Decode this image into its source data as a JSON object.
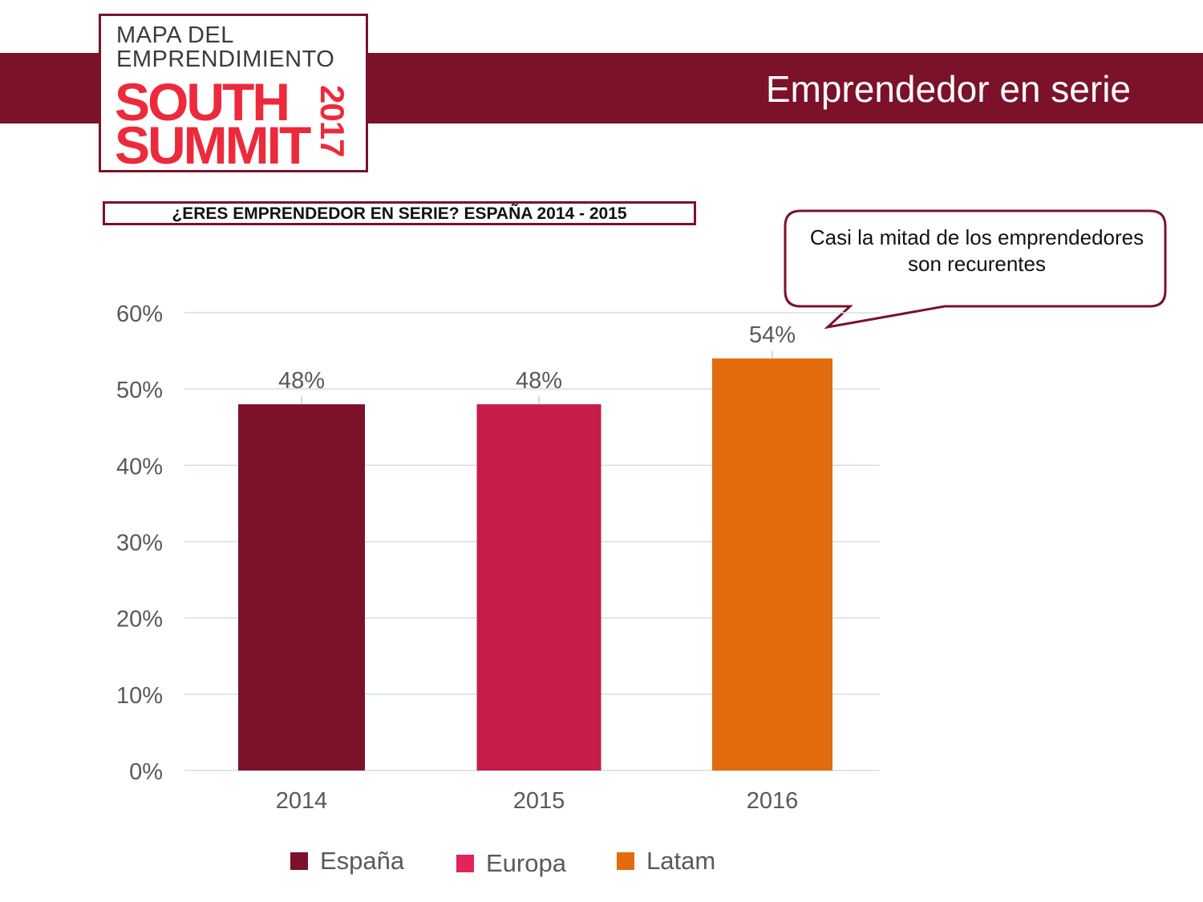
{
  "header": {
    "title": "Emprendedor en serie"
  },
  "logo": {
    "line1": "MAPA DEL",
    "line2": "EMPRENDIMIENTO",
    "line3": "SOUTH",
    "line4": "SUMMIT",
    "year": "2017"
  },
  "callout": {
    "text_line1": "Casi la mitad de los emprendedores",
    "text_line2": "son recurentes"
  },
  "chart_data": {
    "type": "bar",
    "title": "¿ERES EMPRENDEDOR EN SERIE? ESPAÑA 2014 - 2015",
    "categories": [
      "2014",
      "2015",
      "2016"
    ],
    "values": [
      48,
      48,
      54
    ],
    "data_labels": [
      "48%",
      "48%",
      "54%"
    ],
    "series_names": [
      "España",
      "Europa",
      "Latam"
    ],
    "colors": [
      "#7b1229",
      "#c51c48",
      "#e26b0e"
    ],
    "ylim": [
      0,
      60
    ],
    "yticks": [
      "0%",
      "10%",
      "20%",
      "30%",
      "40%",
      "50%",
      "60%"
    ],
    "grid": true,
    "legend": "bottom"
  }
}
